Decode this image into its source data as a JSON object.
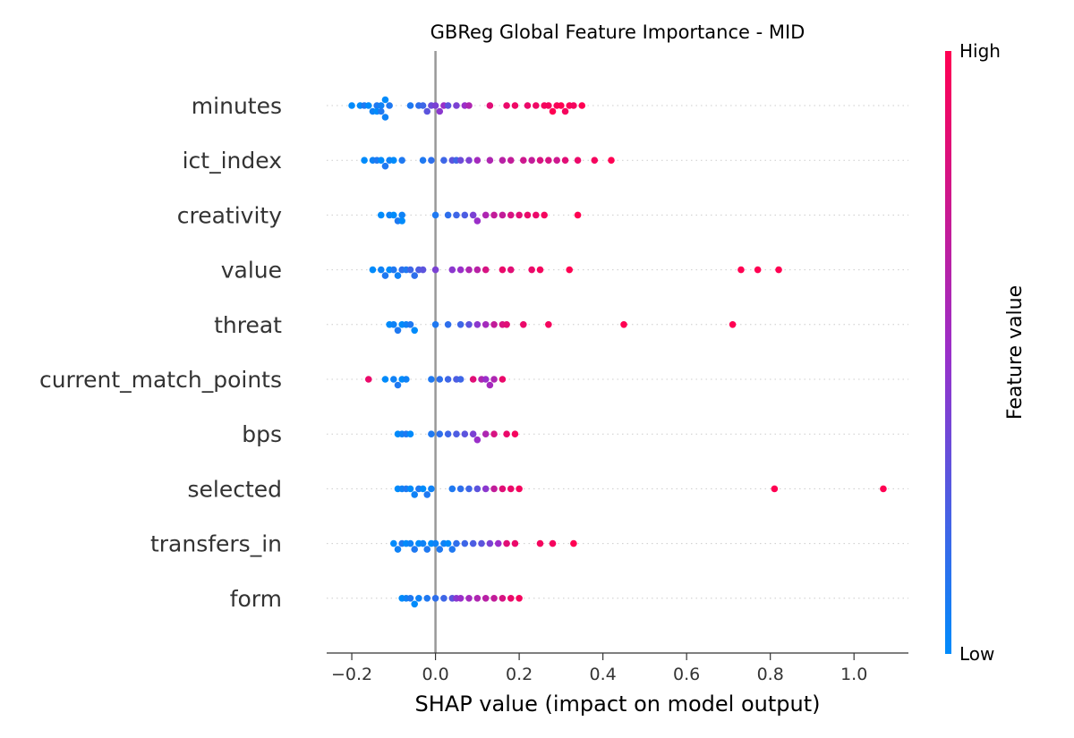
{
  "chart_data": {
    "type": "scatter",
    "title": "GBReg Global Feature Importance - MID",
    "xlabel": "SHAP value (impact on model output)",
    "xlim": [
      -0.26,
      1.13
    ],
    "xticks": [
      -0.2,
      0.0,
      0.2,
      0.4,
      0.6,
      0.8,
      1.0
    ],
    "xtick_labels": [
      "−0.2",
      "0.0",
      "0.2",
      "0.4",
      "0.6",
      "0.8",
      "1.0"
    ],
    "zero_line": 0.0,
    "colorbar": {
      "title": "Feature value",
      "high_label": "High",
      "low_label": "Low",
      "low_color": "#008bfb",
      "high_color": "#ff0052"
    },
    "features": [
      {
        "name": "minutes",
        "points": [
          [
            -0.2,
            0.0
          ],
          [
            -0.18,
            0.0
          ],
          [
            -0.17,
            0.1
          ],
          [
            -0.16,
            0.0
          ],
          [
            -0.15,
            0.05
          ],
          [
            -0.14,
            0.1
          ],
          [
            -0.14,
            0.0
          ],
          [
            -0.13,
            0.05
          ],
          [
            -0.13,
            0.1
          ],
          [
            -0.12,
            0.0
          ],
          [
            -0.12,
            0.05
          ],
          [
            -0.11,
            0.1
          ],
          [
            -0.06,
            0.1
          ],
          [
            -0.04,
            0.15
          ],
          [
            -0.03,
            0.2
          ],
          [
            -0.02,
            0.3
          ],
          [
            -0.01,
            0.35
          ],
          [
            0.0,
            0.4
          ],
          [
            0.01,
            0.45
          ],
          [
            0.02,
            0.5
          ],
          [
            0.03,
            0.3
          ],
          [
            0.05,
            0.4
          ],
          [
            0.07,
            0.5
          ],
          [
            0.08,
            0.6
          ],
          [
            0.13,
            0.85
          ],
          [
            0.17,
            0.9
          ],
          [
            0.19,
            0.92
          ],
          [
            0.22,
            0.9
          ],
          [
            0.24,
            0.92
          ],
          [
            0.26,
            0.95
          ],
          [
            0.27,
            0.95
          ],
          [
            0.28,
            1.0
          ],
          [
            0.29,
            0.97
          ],
          [
            0.3,
            1.0
          ],
          [
            0.31,
            0.95
          ],
          [
            0.32,
            0.98
          ],
          [
            0.33,
            0.95
          ],
          [
            0.35,
            1.0
          ]
        ]
      },
      {
        "name": "ict_index",
        "points": [
          [
            -0.17,
            0.0
          ],
          [
            -0.15,
            0.05
          ],
          [
            -0.14,
            0.1
          ],
          [
            -0.13,
            0.0
          ],
          [
            -0.12,
            0.1
          ],
          [
            -0.11,
            0.05
          ],
          [
            -0.1,
            0.0
          ],
          [
            -0.08,
            0.1
          ],
          [
            -0.03,
            0.1
          ],
          [
            -0.01,
            0.15
          ],
          [
            0.02,
            0.2
          ],
          [
            0.04,
            0.3
          ],
          [
            0.05,
            0.2
          ],
          [
            0.06,
            0.35
          ],
          [
            0.08,
            0.4
          ],
          [
            0.1,
            0.55
          ],
          [
            0.13,
            0.6
          ],
          [
            0.16,
            0.65
          ],
          [
            0.18,
            0.7
          ],
          [
            0.21,
            0.75
          ],
          [
            0.23,
            0.7
          ],
          [
            0.25,
            0.8
          ],
          [
            0.27,
            0.8
          ],
          [
            0.29,
            0.75
          ],
          [
            0.31,
            0.85
          ],
          [
            0.34,
            0.9
          ],
          [
            0.38,
            0.95
          ],
          [
            0.42,
            1.0
          ]
        ]
      },
      {
        "name": "creativity",
        "points": [
          [
            -0.13,
            0.0
          ],
          [
            -0.11,
            0.05
          ],
          [
            -0.1,
            0.0
          ],
          [
            -0.09,
            0.1
          ],
          [
            -0.08,
            0.05
          ],
          [
            -0.08,
            0.0
          ],
          [
            0.0,
            0.1
          ],
          [
            0.03,
            0.15
          ],
          [
            0.05,
            0.2
          ],
          [
            0.07,
            0.25
          ],
          [
            0.09,
            0.4
          ],
          [
            0.1,
            0.5
          ],
          [
            0.12,
            0.6
          ],
          [
            0.14,
            0.7
          ],
          [
            0.16,
            0.7
          ],
          [
            0.18,
            0.8
          ],
          [
            0.2,
            0.85
          ],
          [
            0.22,
            0.9
          ],
          [
            0.24,
            0.9
          ],
          [
            0.26,
            0.95
          ],
          [
            0.34,
            1.0
          ]
        ]
      },
      {
        "name": "value",
        "points": [
          [
            -0.15,
            0.0
          ],
          [
            -0.13,
            0.05
          ],
          [
            -0.12,
            0.1
          ],
          [
            -0.11,
            0.0
          ],
          [
            -0.1,
            0.1
          ],
          [
            -0.09,
            0.05
          ],
          [
            -0.08,
            0.15
          ],
          [
            -0.07,
            0.1
          ],
          [
            -0.06,
            0.2
          ],
          [
            -0.05,
            0.15
          ],
          [
            -0.04,
            0.25
          ],
          [
            -0.03,
            0.3
          ],
          [
            0.0,
            0.4
          ],
          [
            0.04,
            0.45
          ],
          [
            0.06,
            0.5
          ],
          [
            0.08,
            0.6
          ],
          [
            0.1,
            0.65
          ],
          [
            0.12,
            0.8
          ],
          [
            0.16,
            0.9
          ],
          [
            0.18,
            0.85
          ],
          [
            0.23,
            0.9
          ],
          [
            0.25,
            0.95
          ],
          [
            0.32,
            1.0
          ],
          [
            0.73,
            1.0
          ],
          [
            0.77,
            1.0
          ],
          [
            0.82,
            1.0
          ]
        ]
      },
      {
        "name": "threat",
        "points": [
          [
            -0.11,
            0.0
          ],
          [
            -0.1,
            0.05
          ],
          [
            -0.09,
            0.1
          ],
          [
            -0.08,
            0.0
          ],
          [
            -0.07,
            0.05
          ],
          [
            -0.06,
            0.1
          ],
          [
            -0.05,
            0.0
          ],
          [
            0.0,
            0.1
          ],
          [
            0.03,
            0.15
          ],
          [
            0.06,
            0.2
          ],
          [
            0.08,
            0.3
          ],
          [
            0.1,
            0.45
          ],
          [
            0.12,
            0.55
          ],
          [
            0.14,
            0.7
          ],
          [
            0.16,
            0.8
          ],
          [
            0.17,
            0.85
          ],
          [
            0.21,
            0.9
          ],
          [
            0.27,
            0.95
          ],
          [
            0.45,
            1.0
          ],
          [
            0.71,
            1.0
          ]
        ]
      },
      {
        "name": "current_match_points",
        "points": [
          [
            -0.16,
            0.9
          ],
          [
            -0.12,
            0.0
          ],
          [
            -0.1,
            0.05
          ],
          [
            -0.09,
            0.1
          ],
          [
            -0.08,
            0.0
          ],
          [
            -0.07,
            0.05
          ],
          [
            -0.01,
            0.1
          ],
          [
            0.01,
            0.15
          ],
          [
            0.03,
            0.2
          ],
          [
            0.05,
            0.25
          ],
          [
            0.06,
            0.2
          ],
          [
            0.09,
            0.85
          ],
          [
            0.11,
            0.6
          ],
          [
            0.12,
            0.5
          ],
          [
            0.13,
            0.55
          ],
          [
            0.14,
            0.6
          ],
          [
            0.16,
            0.9
          ]
        ]
      },
      {
        "name": "bps",
        "points": [
          [
            -0.09,
            0.0
          ],
          [
            -0.08,
            0.05
          ],
          [
            -0.07,
            0.1
          ],
          [
            -0.06,
            0.0
          ],
          [
            -0.01,
            0.1
          ],
          [
            0.01,
            0.15
          ],
          [
            0.03,
            0.2
          ],
          [
            0.05,
            0.25
          ],
          [
            0.07,
            0.3
          ],
          [
            0.09,
            0.4
          ],
          [
            0.1,
            0.5
          ],
          [
            0.12,
            0.6
          ],
          [
            0.14,
            0.8
          ],
          [
            0.17,
            0.9
          ],
          [
            0.19,
            0.95
          ]
        ]
      },
      {
        "name": "selected",
        "points": [
          [
            -0.09,
            0.0
          ],
          [
            -0.08,
            0.05
          ],
          [
            -0.07,
            0.1
          ],
          [
            -0.06,
            0.0
          ],
          [
            -0.05,
            0.05
          ],
          [
            -0.04,
            0.1
          ],
          [
            -0.03,
            0.0
          ],
          [
            -0.02,
            0.1
          ],
          [
            -0.01,
            0.05
          ],
          [
            0.04,
            0.1
          ],
          [
            0.06,
            0.15
          ],
          [
            0.08,
            0.2
          ],
          [
            0.1,
            0.3
          ],
          [
            0.12,
            0.45
          ],
          [
            0.14,
            0.7
          ],
          [
            0.16,
            0.85
          ],
          [
            0.18,
            0.9
          ],
          [
            0.2,
            0.95
          ],
          [
            0.81,
            1.0
          ],
          [
            1.07,
            1.0
          ]
        ]
      },
      {
        "name": "transfers_in",
        "points": [
          [
            -0.1,
            0.0
          ],
          [
            -0.09,
            0.05
          ],
          [
            -0.08,
            0.1
          ],
          [
            -0.07,
            0.0
          ],
          [
            -0.06,
            0.05
          ],
          [
            -0.05,
            0.1
          ],
          [
            -0.04,
            0.0
          ],
          [
            -0.03,
            0.05
          ],
          [
            -0.02,
            0.1
          ],
          [
            -0.01,
            0.0
          ],
          [
            0.0,
            0.05
          ],
          [
            0.01,
            0.1
          ],
          [
            0.02,
            0.05
          ],
          [
            0.03,
            0.0
          ],
          [
            0.04,
            0.1
          ],
          [
            0.05,
            0.15
          ],
          [
            0.07,
            0.2
          ],
          [
            0.09,
            0.25
          ],
          [
            0.11,
            0.3
          ],
          [
            0.13,
            0.4
          ],
          [
            0.15,
            0.5
          ],
          [
            0.17,
            0.85
          ],
          [
            0.19,
            0.9
          ],
          [
            0.25,
            0.95
          ],
          [
            0.28,
            0.95
          ],
          [
            0.33,
            1.0
          ]
        ]
      },
      {
        "name": "form",
        "points": [
          [
            -0.08,
            0.0
          ],
          [
            -0.07,
            0.05
          ],
          [
            -0.06,
            0.1
          ],
          [
            -0.05,
            0.0
          ],
          [
            -0.04,
            0.05
          ],
          [
            -0.02,
            0.1
          ],
          [
            0.0,
            0.15
          ],
          [
            0.02,
            0.2
          ],
          [
            0.04,
            0.3
          ],
          [
            0.05,
            0.45
          ],
          [
            0.06,
            0.5
          ],
          [
            0.08,
            0.55
          ],
          [
            0.1,
            0.6
          ],
          [
            0.12,
            0.65
          ],
          [
            0.14,
            0.7
          ],
          [
            0.16,
            0.8
          ],
          [
            0.18,
            0.9
          ],
          [
            0.2,
            0.95
          ]
        ]
      }
    ]
  }
}
